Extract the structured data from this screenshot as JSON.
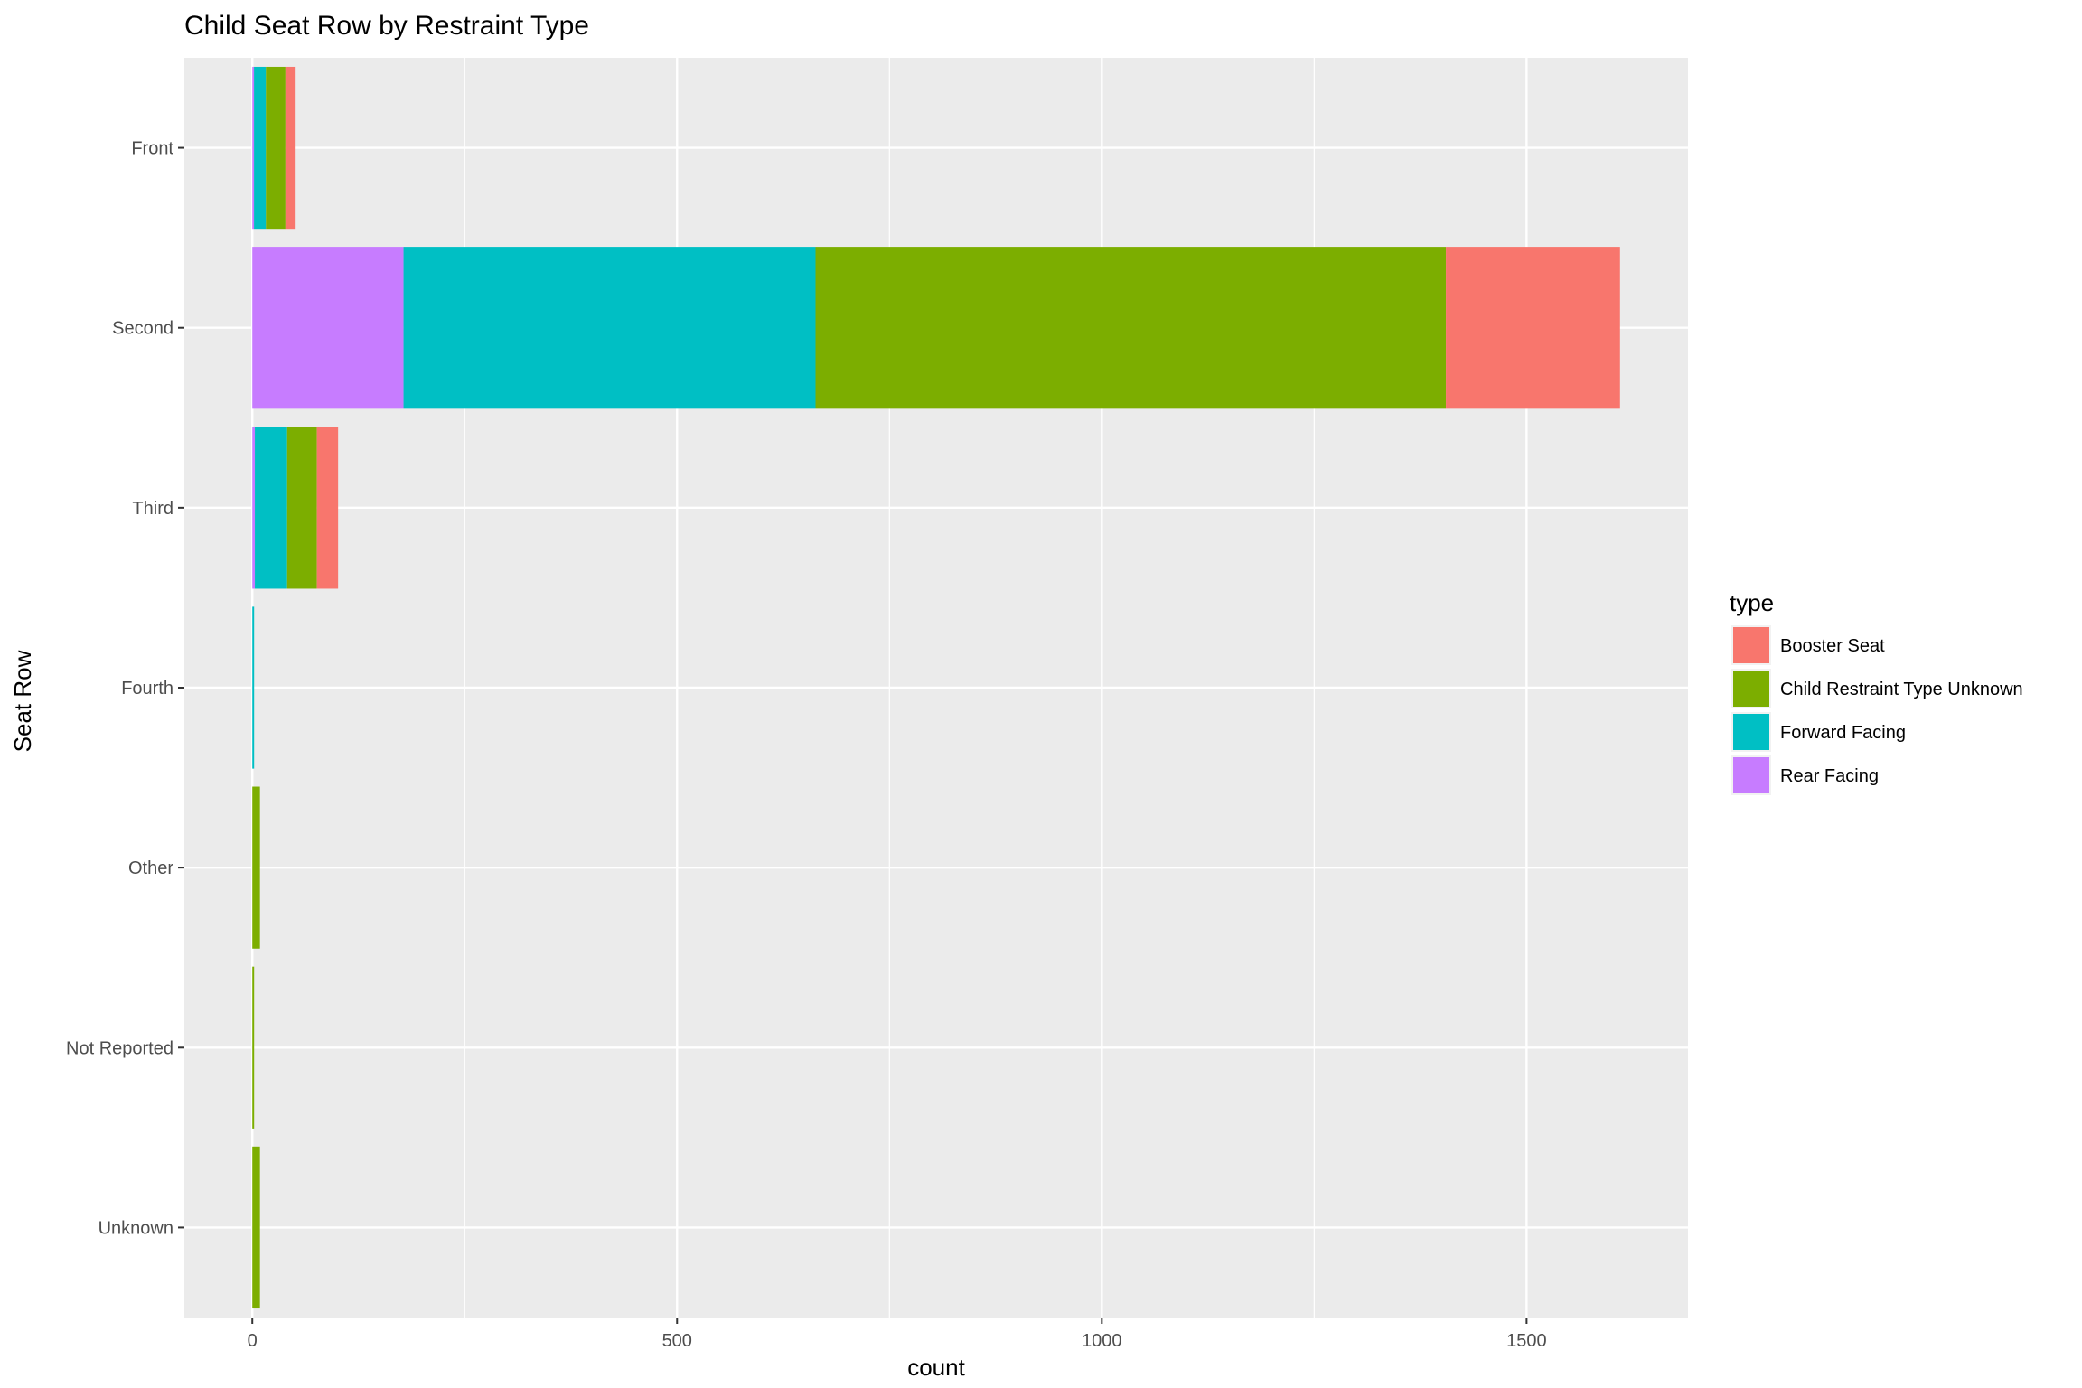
{
  "chart_data": {
    "type": "bar",
    "orientation": "horizontal",
    "stacked": true,
    "title": "Child Seat Row by Restraint Type",
    "xlabel": "count",
    "ylabel": "Seat Row",
    "xlim": [
      -80,
      1690
    ],
    "x_ticks": [
      "0",
      "500",
      "1000",
      "1500"
    ],
    "x_tick_values": [
      0,
      500,
      1000,
      1500
    ],
    "categories": [
      "Front",
      "Second",
      "Third",
      "Fourth",
      "Other",
      "Not Reported",
      "Unknown"
    ],
    "legend": {
      "title": "type",
      "position": "right"
    },
    "grid": true,
    "series": [
      {
        "name": "Rear Facing",
        "color": "#C77CFF",
        "values": [
          2,
          178,
          3,
          0,
          0,
          0,
          0
        ]
      },
      {
        "name": "Forward Facing",
        "color": "#00BFC4",
        "values": [
          14,
          485,
          38,
          2,
          0,
          0,
          0
        ]
      },
      {
        "name": "Child Restraint Type Unknown",
        "color": "#7CAE00",
        "values": [
          23,
          742,
          35,
          0,
          9,
          2,
          9
        ]
      },
      {
        "name": "Booster Seat",
        "color": "#F8766D",
        "values": [
          12,
          205,
          25,
          0,
          0,
          0,
          0
        ]
      }
    ],
    "legend_order": [
      "Booster Seat",
      "Child Restraint Type Unknown",
      "Forward Facing",
      "Rear Facing"
    ]
  }
}
